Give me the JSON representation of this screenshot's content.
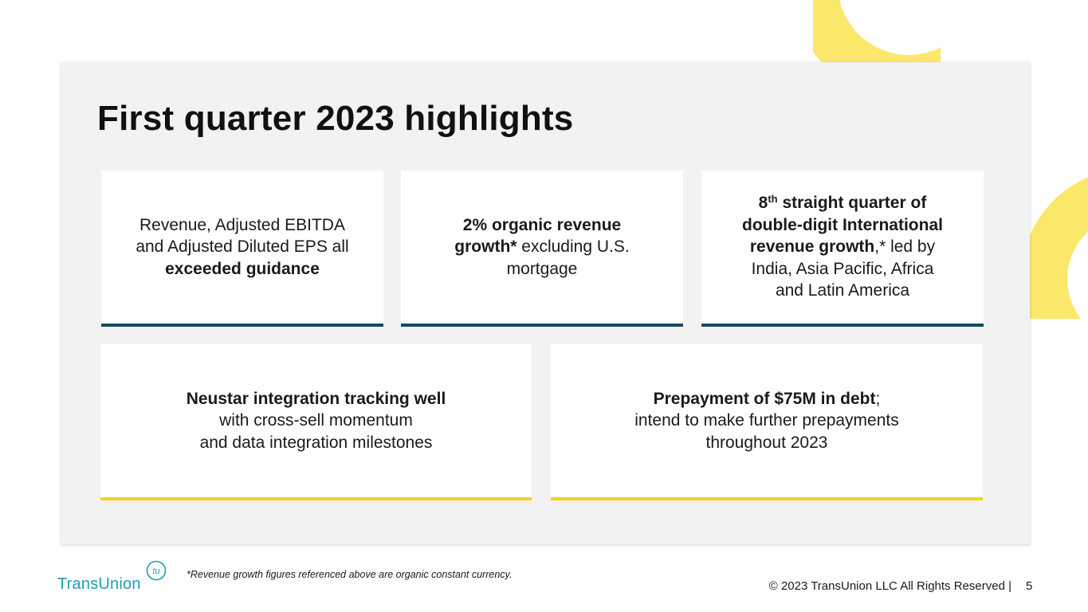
{
  "slide": {
    "title": "First quarter 2023 highlights",
    "cards_top": [
      {
        "lines": [
          {
            "parts": [
              {
                "t": "Revenue, Adjusted EBITDA",
                "b": false
              }
            ]
          },
          {
            "parts": [
              {
                "t": "and Adjusted Diluted EPS all",
                "b": false
              }
            ]
          },
          {
            "parts": [
              {
                "t": "exceeded guidance",
                "b": true
              }
            ]
          }
        ]
      },
      {
        "lines": [
          {
            "parts": [
              {
                "t": "2% organic revenue",
                "b": true
              }
            ]
          },
          {
            "parts": [
              {
                "t": "growth*",
                "b": true
              },
              {
                "t": " excluding U.S.",
                "b": false
              }
            ]
          },
          {
            "parts": [
              {
                "t": "mortgage",
                "b": false
              }
            ]
          }
        ]
      },
      {
        "lines": [
          {
            "parts": [
              {
                "t": "8",
                "b": true
              },
              {
                "t": "th",
                "b": true,
                "sup": true
              },
              {
                "t": " straight quarter of",
                "b": true
              }
            ]
          },
          {
            "parts": [
              {
                "t": "double-digit International",
                "b": true
              }
            ]
          },
          {
            "parts": [
              {
                "t": "revenue growth",
                "b": true
              },
              {
                "t": ",* led by",
                "b": false
              }
            ]
          },
          {
            "parts": [
              {
                "t": "India, Asia Pacific, Africa",
                "b": false
              }
            ]
          },
          {
            "parts": [
              {
                "t": "and Latin America",
                "b": false
              }
            ]
          }
        ]
      }
    ],
    "cards_bottom": [
      {
        "lines": [
          {
            "parts": [
              {
                "t": "Neustar integration tracking well",
                "b": true
              }
            ]
          },
          {
            "parts": [
              {
                "t": "with cross-sell momentum",
                "b": false
              }
            ]
          },
          {
            "parts": [
              {
                "t": "and data integration milestones",
                "b": false
              }
            ]
          }
        ]
      },
      {
        "lines": [
          {
            "parts": [
              {
                "t": "Prepayment of $75M in debt",
                "b": true
              },
              {
                "t": ";",
                "b": false
              }
            ]
          },
          {
            "parts": [
              {
                "t": "intend to make further prepayments",
                "b": false
              }
            ]
          },
          {
            "parts": [
              {
                "t": "throughout 2023",
                "b": false
              }
            ]
          }
        ]
      }
    ]
  },
  "footer": {
    "footnote": "*Revenue growth figures referenced above are organic constant currency.",
    "copyright": "© 2023 TransUnion LLC All Rights Reserved   |",
    "page_number": "5",
    "logo_text": "TransUnion",
    "logo_mark": "tu",
    "logo_icon": "transunion-logo-icon"
  },
  "colors": {
    "teal_bar": "#0f4c5c",
    "yellow_bar": "#f7d117",
    "decor_yellow": "#fbe76a",
    "brand_teal": "#1b9fb1"
  }
}
